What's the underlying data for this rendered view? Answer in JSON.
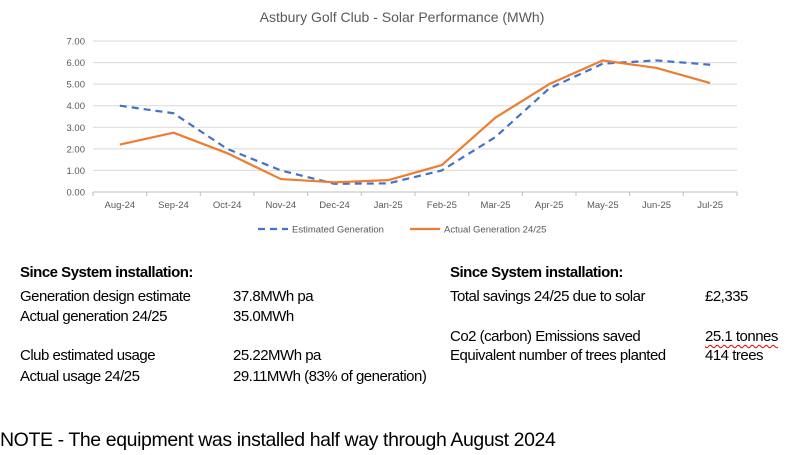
{
  "chart_data": {
    "type": "line",
    "title": "Astbury Golf Club - Solar Performance (MWh)",
    "xlabel": "",
    "ylabel": "",
    "ylim": [
      0,
      7
    ],
    "yticks": [
      "0.00",
      "1.00",
      "2.00",
      "3.00",
      "4.00",
      "5.00",
      "6.00",
      "7.00"
    ],
    "grid": true,
    "legend_position": "bottom",
    "categories": [
      "Aug-24",
      "Sep-24",
      "Oct-24",
      "Nov-24",
      "Dec-24",
      "Jan-25",
      "Feb-25",
      "Mar-25",
      "Apr-25",
      "May-25",
      "Jun-25",
      "Jul-25"
    ],
    "series": [
      {
        "name": "Estimated Generation",
        "color": "#4472C4",
        "style": "dashed",
        "values": [
          4.0,
          3.65,
          2.0,
          1.0,
          0.38,
          0.4,
          1.0,
          2.55,
          4.8,
          5.95,
          6.1,
          5.9
        ]
      },
      {
        "name": "Actual Generation 24/25",
        "color": "#ED7D31",
        "style": "solid",
        "values": [
          2.2,
          2.75,
          1.8,
          0.6,
          0.45,
          0.55,
          1.25,
          3.45,
          5.0,
          6.1,
          5.75,
          5.05
        ]
      }
    ]
  },
  "left": {
    "heading": "Since System installation:",
    "rows": [
      {
        "label": "Generation design estimate",
        "value": "37.8MWh pa"
      },
      {
        "label": "Actual generation 24/25",
        "value": "35.0MWh"
      },
      {
        "label": "Club estimated usage",
        "value": "25.22MWh pa"
      },
      {
        "label": "Actual usage 24/25",
        "value": "29.11MWh (83% of generation)"
      }
    ]
  },
  "right": {
    "heading": "Since System installation:",
    "rows": [
      {
        "label": "Total savings 24/25 due to solar",
        "value": "£2,335"
      },
      {
        "label": "Co2 (carbon) Emissions saved",
        "value": "25.1 tonnes"
      },
      {
        "label": "Equivalent number of trees planted",
        "value": "414 trees"
      }
    ]
  },
  "note": "NOTE - The equipment was installed half way through August 2024"
}
